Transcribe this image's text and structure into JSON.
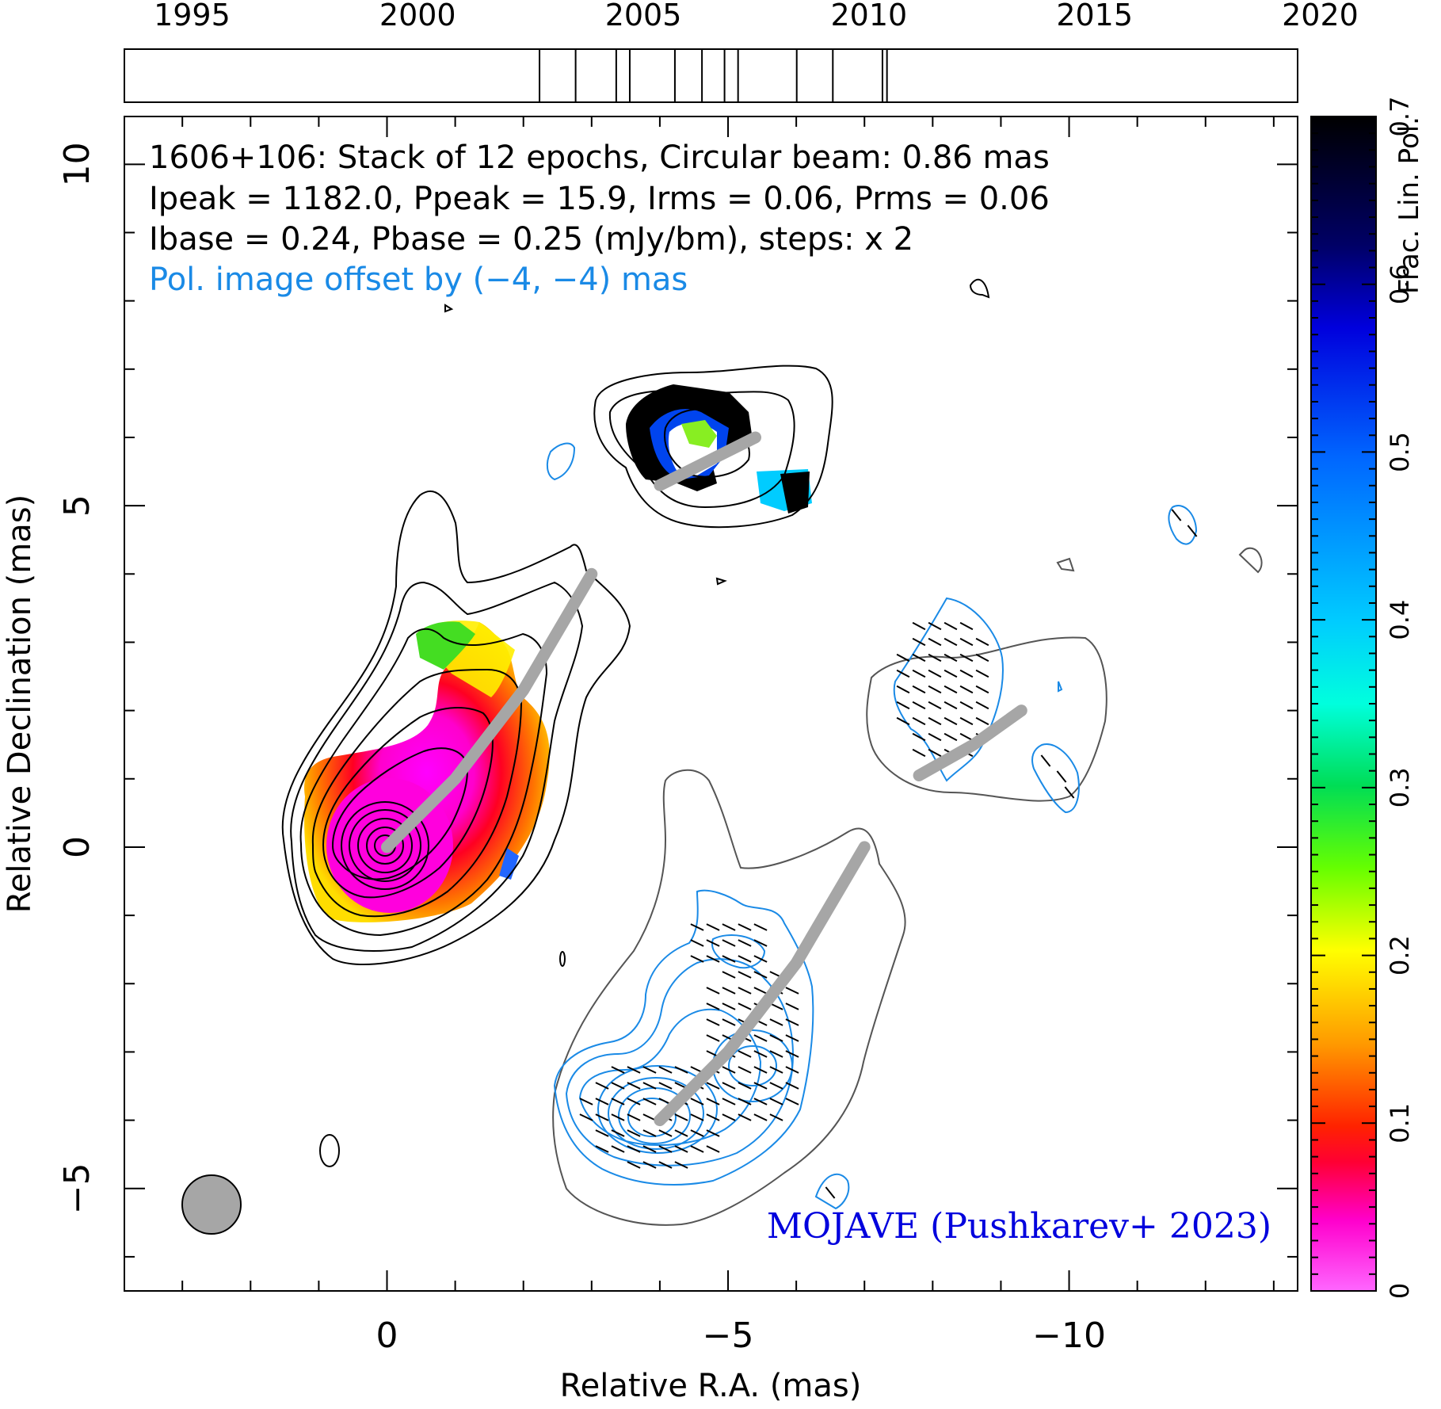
{
  "timeline": {
    "year_labels": [
      "1995",
      "2000",
      "2005",
      "2010",
      "2015",
      "2020"
    ],
    "year_values": [
      1995,
      2000,
      2005,
      2010,
      2015,
      2020
    ],
    "range": [
      1993.5,
      2019.5
    ],
    "epochs": [
      2002.7,
      2003.5,
      2004.4,
      2004.7,
      2005.7,
      2006.3,
      2006.8,
      2007.1,
      2008.4,
      2009.2,
      2010.3,
      2010.4
    ]
  },
  "chart_data": {
    "type": "map",
    "source": "1606+106",
    "annotations": {
      "line1": "1606+106: Stack of 12 epochs, Circular beam: 0.86 mas",
      "line2": "Ipeak = 1182.0, Ppeak = 15.9, Irms = 0.06, Prms = 0.06",
      "line3": "Ibase = 0.24, Pbase = 0.25 (mJy/bm), steps: x 2",
      "line4": "Pol. image offset by (−4, −4) mas",
      "credit": "MOJAVE (Pushkarev+ 2023)"
    },
    "colors": {
      "stokes_i_contours": "#000000",
      "pol_contours": "#1a8ae6",
      "pol_annotation": "#1a8ae6",
      "credit": "#0000dd",
      "ridge_line": "#a6a6a6",
      "beam_fill": "#a6a6a6"
    },
    "xlabel": "Relative R.A. (mas)",
    "ylabel": "Relative Declination (mas)",
    "xlim": [
      3.85,
      -13.35
    ],
    "ylim": [
      -6.5,
      10.7
    ],
    "x_ticks": [
      {
        "value": 0,
        "label": "0"
      },
      {
        "value": -5,
        "label": "−5"
      },
      {
        "value": -10,
        "label": "−10"
      }
    ],
    "y_ticks": [
      {
        "value": -5,
        "label": "−5"
      },
      {
        "value": 0,
        "label": "0"
      },
      {
        "value": 5,
        "label": "5"
      },
      {
        "value": 10,
        "label": "10"
      }
    ],
    "beam_mas": 0.86,
    "colorbar": {
      "label": "Frac. Lin. Pol.",
      "min": 0,
      "max": 0.7,
      "ticks": [
        {
          "value": 0,
          "label": "0"
        },
        {
          "value": 0.1,
          "label": "0.1"
        },
        {
          "value": 0.2,
          "label": "0.2"
        },
        {
          "value": 0.3,
          "label": "0.3"
        },
        {
          "value": 0.4,
          "label": "0.4"
        },
        {
          "value": 0.5,
          "label": "0.5"
        },
        {
          "value": 0.6,
          "label": "0.6"
        },
        {
          "value": 0.7,
          "label": "0.7"
        }
      ]
    },
    "ridge_lines": [
      {
        "panel": "stokes_i",
        "points": [
          [
            0,
            0
          ],
          [
            -1.0,
            1.0
          ],
          [
            -2.0,
            2.3
          ],
          [
            -3.0,
            4.0
          ]
        ]
      },
      {
        "panel": "fractional_pol",
        "points": [
          [
            -4,
            5.3
          ],
          [
            -4.8,
            5.7
          ],
          [
            -5.4,
            6.0
          ]
        ]
      },
      {
        "panel": "pol_contours",
        "points": [
          [
            -4,
            -4
          ],
          [
            -5.0,
            -3.0
          ],
          [
            -6.0,
            -1.7
          ],
          [
            -7.0,
            0.0
          ]
        ]
      },
      {
        "panel": "pol_contours_b",
        "points": [
          [
            -7.8,
            1.05
          ],
          [
            -8.6,
            1.5
          ],
          [
            -9.3,
            2.0
          ]
        ]
      }
    ]
  }
}
